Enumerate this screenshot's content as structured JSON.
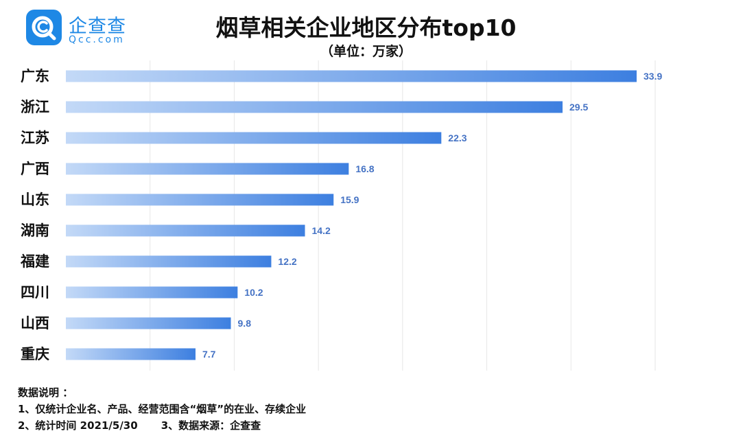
{
  "logo": {
    "name": "企查查",
    "url": "Qcc.com"
  },
  "chart_data": {
    "type": "bar",
    "orientation": "horizontal",
    "title": "烟草相关企业地区分布top10",
    "subtitle": "（单位：万家）",
    "categories": [
      "广东",
      "浙江",
      "江苏",
      "广西",
      "山东",
      "湖南",
      "福建",
      "四川",
      "山西",
      "重庆"
    ],
    "values": [
      33.9,
      29.5,
      22.3,
      16.8,
      15.9,
      14.2,
      12.2,
      10.2,
      9.8,
      7.7
    ],
    "value_labels": [
      "33.9",
      "29.5",
      "22.3",
      "16.8",
      "15.9",
      "14.2",
      "12.2",
      "10.2",
      "9.8",
      "7.7"
    ],
    "xlim": [
      0,
      35
    ],
    "grid": true,
    "xlabel": "",
    "ylabel": "",
    "colors": {
      "bar_start": "#c3d9f7",
      "bar_end": "#3d7fe0",
      "value_label": "#4472c4",
      "grid": "#e6e6e6"
    }
  },
  "notes": {
    "heading": "数据说明 ：",
    "line1": "1、仅统计企业名、产品、经营范围含“烟草”的在业、存续企业",
    "line2a": "2、统计时间 2021/5/30",
    "line2b": "3、数据来源：企查查"
  }
}
